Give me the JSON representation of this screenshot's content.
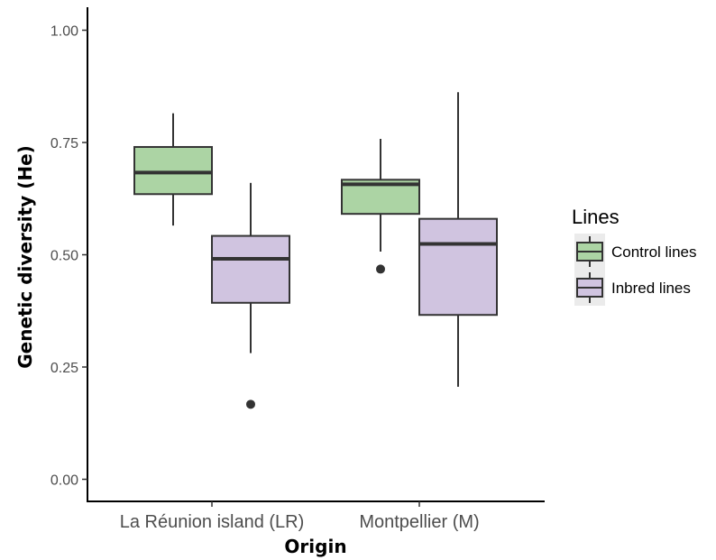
{
  "chart_data": {
    "type": "boxplot",
    "xlabel": "Origin",
    "ylabel": "Genetic diversity (He)",
    "ylim": [
      0,
      1.05
    ],
    "yticks": [
      "0.00",
      "0.25",
      "0.50",
      "0.75",
      "1.00"
    ],
    "grid": false,
    "legend": {
      "title": "Lines",
      "placement": "right",
      "entries": [
        "Control lines",
        "Inbred lines"
      ]
    },
    "categories": [
      "La Réunion island (LR)",
      "Montpellier (M)"
    ],
    "series": [
      {
        "name": "Control lines",
        "color": "#acd4a4",
        "boxes": [
          {
            "whisker_low": 0.565,
            "q1": 0.635,
            "median": 0.683,
            "q3": 0.74,
            "whisker_high": 0.815,
            "outliers": []
          },
          {
            "whisker_low": 0.507,
            "q1": 0.591,
            "median": 0.657,
            "q3": 0.667,
            "whisker_high": 0.758,
            "outliers": [
              0.468
            ]
          }
        ]
      },
      {
        "name": "Inbred lines",
        "color": "#d0c4e0",
        "boxes": [
          {
            "whisker_low": 0.281,
            "q1": 0.393,
            "median": 0.491,
            "q3": 0.542,
            "whisker_high": 0.66,
            "outliers": [
              0.167
            ]
          },
          {
            "whisker_low": 0.206,
            "q1": 0.366,
            "median": 0.524,
            "q3": 0.58,
            "whisker_high": 0.862,
            "outliers": []
          }
        ]
      }
    ]
  }
}
